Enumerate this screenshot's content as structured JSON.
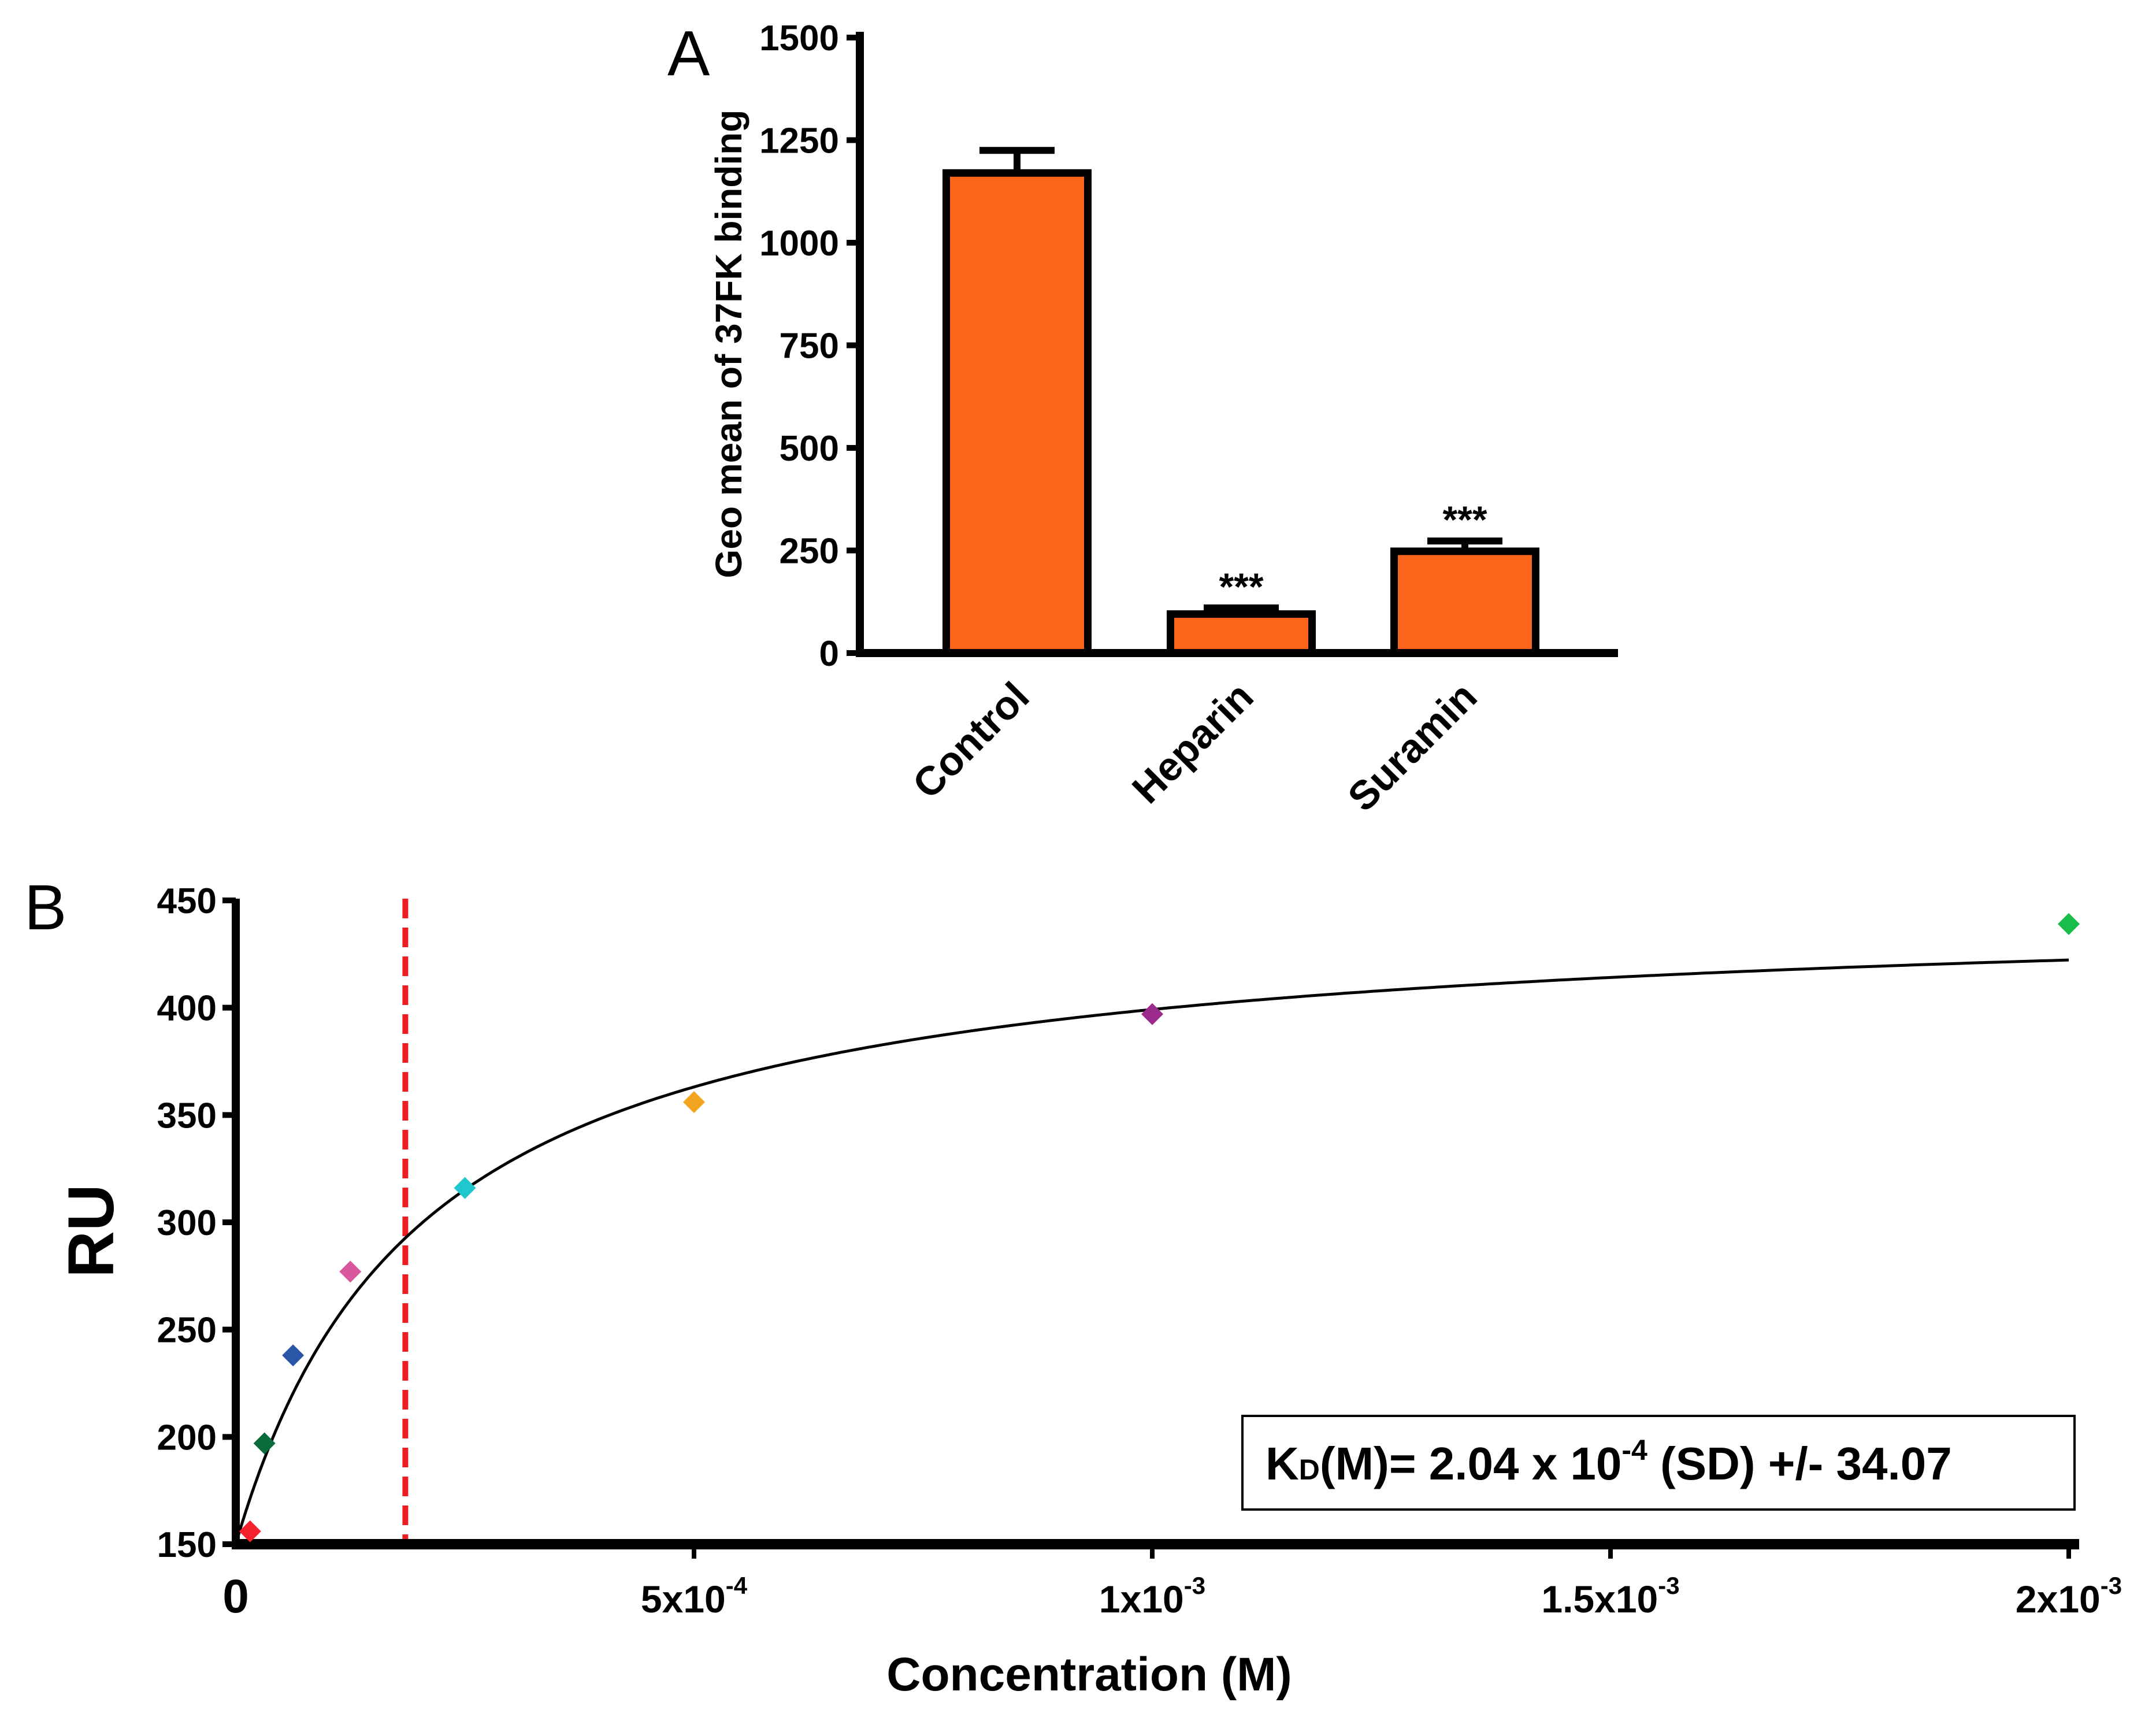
{
  "chart_data": [
    {
      "panel": "A",
      "type": "bar",
      "categories": [
        "Control",
        "Heparin",
        "Suramin"
      ],
      "values": [
        1170,
        95,
        248
      ],
      "errors": [
        55,
        15,
        25
      ],
      "significance": [
        "",
        "***",
        "***"
      ],
      "ylabel": "Geo mean of 37FK binding",
      "xlabel": "",
      "ylim": [
        0,
        1500
      ],
      "yticks": [
        "0",
        "250",
        "500",
        "750",
        "1000",
        "1250",
        "1500"
      ],
      "bar_color": "#fc6419",
      "grid": false
    },
    {
      "panel": "B",
      "type": "scatter",
      "title": "",
      "xlabel": "Concentration (M)",
      "ylabel": "RU",
      "xlim": [
        0,
        0.002
      ],
      "ylim": [
        150,
        450
      ],
      "xticks": [
        {
          "value": 0,
          "base": "0",
          "exp": ""
        },
        {
          "value": 0.0005,
          "base": "5x10",
          "exp": "-4"
        },
        {
          "value": 0.001,
          "base": "1x10",
          "exp": "-3"
        },
        {
          "value": 0.0015,
          "base": "1.5x10",
          "exp": "-3"
        },
        {
          "value": 0.002,
          "base": "2x10",
          "exp": "-3"
        }
      ],
      "yticks": [
        "150",
        "200",
        "250",
        "300",
        "350",
        "400",
        "450"
      ],
      "points": [
        {
          "x": 1.56e-05,
          "y": 156,
          "color": "#f5222d"
        },
        {
          "x": 3.13e-05,
          "y": 197,
          "color": "#0a6b3b"
        },
        {
          "x": 6.25e-05,
          "y": 238,
          "color": "#2a56a8"
        },
        {
          "x": 0.000125,
          "y": 277,
          "color": "#d9589d"
        },
        {
          "x": 0.00025,
          "y": 316,
          "color": "#1fc7cf"
        },
        {
          "x": 0.0005,
          "y": 356,
          "color": "#f2a51e"
        },
        {
          "x": 0.001,
          "y": 397,
          "color": "#9c2a8d"
        },
        {
          "x": 0.002,
          "y": 439,
          "color": "#19bd4a"
        }
      ],
      "fit": {
        "model": "one-site binding",
        "baseline": 150,
        "bmax": 300,
        "kd": 0.000204
      },
      "reference_line": {
        "x": 0.000185,
        "color": "#ee1c25"
      },
      "annotation": {
        "prefix": "K",
        "sub": "D",
        "mid": "(M)= 2.04 x 10",
        "exp": "-4",
        "suffix": " (SD) +/- 34.07"
      }
    }
  ]
}
